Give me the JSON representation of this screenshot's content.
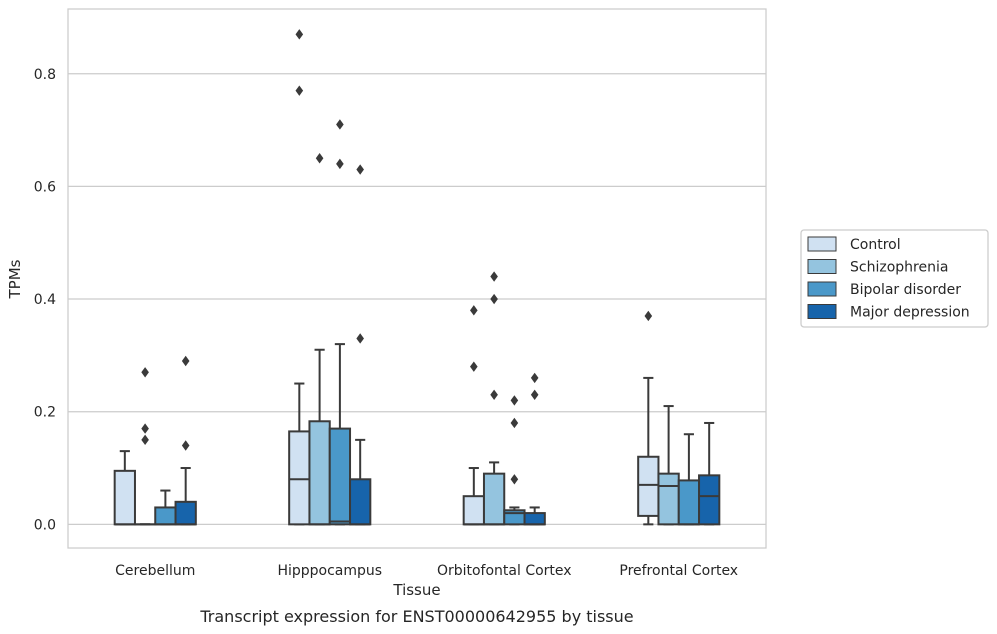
{
  "chart_data": {
    "type": "box",
    "caption": "Transcript expression for ENST00000642955 by tissue",
    "xlabel": "Tissue",
    "ylabel": "TPMs",
    "ylim": [
      -0.042,
      0.915
    ],
    "yticks": [
      "0.0",
      "0.2",
      "0.4",
      "0.6",
      "0.8"
    ],
    "ytick_values": [
      0.0,
      0.2,
      0.4,
      0.6,
      0.8
    ],
    "grid": "horizontal",
    "legend_placement": "right",
    "categories": [
      "Cerebellum",
      "Hipppocampus",
      "Orbitofontal Cortex",
      "Prefrontal Cortex"
    ],
    "series": [
      {
        "name": "Control",
        "color": "#d0e1f2",
        "boxes": [
          {
            "min": 0.0,
            "q1": 0.0,
            "median": 0.0,
            "q3": 0.095,
            "max": 0.13,
            "outliers": []
          },
          {
            "min": 0.0,
            "q1": 0.0,
            "median": 0.08,
            "q3": 0.165,
            "max": 0.25,
            "outliers": [
              0.87,
              0.77
            ]
          },
          {
            "min": 0.0,
            "q1": 0.0,
            "median": 0.0,
            "q3": 0.05,
            "max": 0.1,
            "outliers": [
              0.38,
              0.28
            ]
          },
          {
            "min": 0.0,
            "q1": 0.015,
            "median": 0.07,
            "q3": 0.12,
            "max": 0.26,
            "outliers": [
              0.37
            ]
          }
        ]
      },
      {
        "name": "Schizophrenia",
        "color": "#94c4df",
        "boxes": [
          {
            "min": 0.0,
            "q1": 0.0,
            "median": 0.0,
            "q3": 0.0,
            "max": 0.0,
            "outliers": [
              0.27,
              0.17,
              0.15
            ]
          },
          {
            "min": 0.0,
            "q1": 0.0,
            "median": 0.0,
            "q3": 0.183,
            "max": 0.31,
            "outliers": [
              0.65
            ]
          },
          {
            "min": 0.0,
            "q1": 0.0,
            "median": 0.0,
            "q3": 0.09,
            "max": 0.11,
            "outliers": [
              0.44,
              0.4,
              0.23
            ]
          },
          {
            "min": 0.0,
            "q1": 0.0,
            "median": 0.068,
            "q3": 0.09,
            "max": 0.21,
            "outliers": []
          }
        ]
      },
      {
        "name": "Bipolar disorder",
        "color": "#4a98c9",
        "boxes": [
          {
            "min": 0.0,
            "q1": 0.0,
            "median": 0.0,
            "q3": 0.03,
            "max": 0.06,
            "outliers": []
          },
          {
            "min": 0.0,
            "q1": 0.0,
            "median": 0.005,
            "q3": 0.17,
            "max": 0.32,
            "outliers": [
              0.71,
              0.64
            ]
          },
          {
            "min": 0.0,
            "q1": 0.0,
            "median": 0.02,
            "q3": 0.025,
            "max": 0.03,
            "outliers": [
              0.22,
              0.18,
              0.08
            ]
          },
          {
            "min": 0.0,
            "q1": 0.0,
            "median": 0.0,
            "q3": 0.078,
            "max": 0.16,
            "outliers": []
          }
        ]
      },
      {
        "name": "Major depression",
        "color": "#1764ab",
        "boxes": [
          {
            "min": 0.0,
            "q1": 0.0,
            "median": 0.0,
            "q3": 0.04,
            "max": 0.1,
            "outliers": [
              0.29,
              0.14
            ]
          },
          {
            "min": 0.0,
            "q1": 0.0,
            "median": 0.0,
            "q3": 0.08,
            "max": 0.15,
            "outliers": [
              0.63,
              0.33
            ]
          },
          {
            "min": 0.0,
            "q1": 0.0,
            "median": 0.0,
            "q3": 0.02,
            "max": 0.03,
            "outliers": [
              0.26,
              0.23
            ]
          },
          {
            "min": 0.0,
            "q1": 0.0,
            "median": 0.05,
            "q3": 0.087,
            "max": 0.18,
            "outliers": []
          }
        ]
      }
    ]
  }
}
